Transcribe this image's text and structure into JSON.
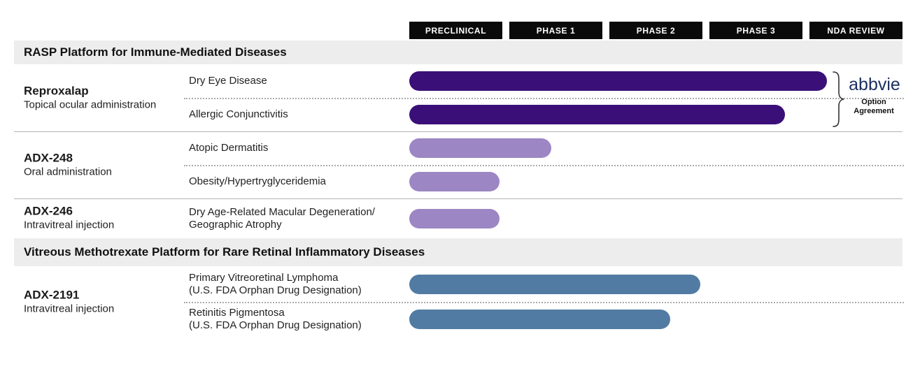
{
  "phases": [
    "PRECLINICAL",
    "PHASE 1",
    "PHASE 2",
    "PHASE 3",
    "NDA REVIEW"
  ],
  "colors": {
    "dark_purple": "#3a1078",
    "light_purple": "#9c86c3",
    "steel_blue": "#527ba3",
    "phase_box_bg": "#0a0a0a",
    "section_band_bg": "#ededed",
    "abbvie_navy": "#1c2f5e"
  },
  "sections": [
    {
      "title": "RASP Platform for Immune-Mediated Diseases",
      "groups": [
        {
          "drug": "Reproxalap",
          "route": "Topical ocular administration",
          "rows": [
            {
              "indication_line1": "Dry Eye Disease",
              "indication_line2": "",
              "progress_pct": 84.7,
              "color": "#3a1078",
              "stage_reached": "NDA Review (early)"
            },
            {
              "indication_line1": "Allergic Conjunctivitis",
              "indication_line2": "",
              "progress_pct": 76.2,
              "color": "#3a1078",
              "stage_reached": "Phase 3 (late)"
            }
          ],
          "annotation": {
            "partner": "abbvie",
            "note": "Option Agreement"
          }
        },
        {
          "drug": "ADX-248",
          "route": "Oral administration",
          "rows": [
            {
              "indication_line1": "Atopic Dermatitis",
              "indication_line2": "",
              "progress_pct": 28.8,
              "color": "#9c86c3",
              "stage_reached": "Phase 1 (mid)"
            },
            {
              "indication_line1": "Obesity/Hypertryglyceridemia",
              "indication_line2": "",
              "progress_pct": 18.3,
              "color": "#9c86c3",
              "stage_reached": "Preclinical (complete)"
            }
          ]
        },
        {
          "drug": "ADX-246",
          "route": "Intravitreal injection",
          "rows": [
            {
              "indication_line1": "Dry Age-Related Macular Degeneration/",
              "indication_line2": "Geographic Atrophy",
              "progress_pct": 18.3,
              "color": "#9c86c3",
              "stage_reached": "Preclinical (complete)"
            }
          ]
        }
      ]
    },
    {
      "title": "Vitreous Methotrexate Platform for Rare Retinal Inflammatory Diseases",
      "groups": [
        {
          "drug": "ADX-2191",
          "route": "Intravitreal injection",
          "rows": [
            {
              "indication_line1": "Primary Vitreoretinal Lymphoma",
              "indication_line2": "(U.S. FDA Orphan Drug Designation)",
              "progress_pct": 59.0,
              "color": "#527ba3",
              "stage_reached": "Phase 2 (complete)"
            },
            {
              "indication_line1": "Retinitis Pigmentosa",
              "indication_line2": "(U.S. FDA Orphan Drug Designation)",
              "progress_pct": 52.9,
              "color": "#527ba3",
              "stage_reached": "Phase 2 (mid-late)"
            }
          ]
        }
      ]
    }
  ],
  "chart_data": {
    "type": "bar",
    "subtype": "horizontal-pipeline-gantt",
    "title": "Drug development pipeline",
    "phase_axis": [
      "PRECLINICAL",
      "PHASE 1",
      "PHASE 2",
      "PHASE 3",
      "NDA REVIEW"
    ],
    "axis_range_phase_units": [
      0,
      5
    ],
    "rows": [
      {
        "program": "Reproxalap",
        "administration": "Topical ocular administration",
        "indication": "Dry Eye Disease",
        "phase_progress": 4.2,
        "partner_note": "abbvie Option Agreement"
      },
      {
        "program": "Reproxalap",
        "administration": "Topical ocular administration",
        "indication": "Allergic Conjunctivitis",
        "phase_progress": 3.8,
        "partner_note": "abbvie Option Agreement"
      },
      {
        "program": "ADX-248",
        "administration": "Oral administration",
        "indication": "Atopic Dermatitis",
        "phase_progress": 1.45
      },
      {
        "program": "ADX-248",
        "administration": "Oral administration",
        "indication": "Obesity/Hypertryglyceridemia",
        "phase_progress": 0.9
      },
      {
        "program": "ADX-246",
        "administration": "Intravitreal injection",
        "indication": "Dry Age-Related Macular Degeneration/Geographic Atrophy",
        "phase_progress": 0.9
      },
      {
        "program": "ADX-2191",
        "administration": "Intravitreal injection",
        "indication": "Primary Vitreoretinal Lymphoma (U.S. FDA Orphan Drug Designation)",
        "phase_progress": 3.0
      },
      {
        "program": "ADX-2191",
        "administration": "Intravitreal injection",
        "indication": "Retinitis Pigmentosa (U.S. FDA Orphan Drug Designation)",
        "phase_progress": 2.65
      }
    ],
    "section_headers": [
      "RASP Platform for Immune-Mediated Diseases",
      "Vitreous Methotrexate Platform for Rare Retinal Inflammatory Diseases"
    ]
  }
}
